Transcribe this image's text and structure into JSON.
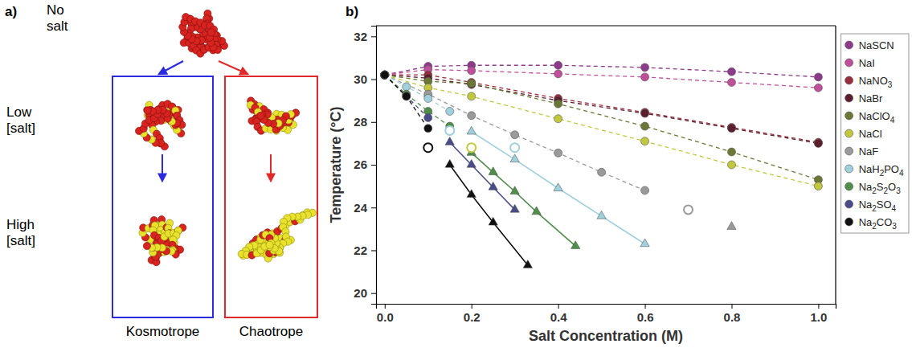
{
  "panel_a": {
    "label": "a)",
    "top": "No salt",
    "rows": [
      "Low [salt]",
      "High [salt]"
    ],
    "columns": [
      "Kosmotrope",
      "Chaotrope"
    ]
  },
  "chart_data": {
    "type": "scatter",
    "panel_label": "b)",
    "x_label": "Salt Concentration (M)",
    "y_label": "Temperature (°C)",
    "xlim": [
      -0.02,
      1.04
    ],
    "ylim": [
      19.5,
      32.5
    ],
    "xticks": [
      {
        "value": 0,
        "label": "0.0"
      },
      {
        "value": 0.2,
        "label": "0.2"
      },
      {
        "value": 0.4,
        "label": "0.4"
      },
      {
        "value": 0.6,
        "label": "0.6"
      },
      {
        "value": 0.8,
        "label": "0.8"
      },
      {
        "value": 1,
        "label": "1.0"
      }
    ],
    "yticks": [
      20,
      22,
      24,
      26,
      28,
      30,
      32
    ],
    "grid": false,
    "legend": "right",
    "series": [
      {
        "name": "NaSCN",
        "color": "#8e3a8a",
        "marker": "circle",
        "line_style": "dashed",
        "x": [
          0,
          0.1,
          0.2,
          0.4,
          0.6,
          0.8,
          1.0
        ],
        "values": [
          30.2,
          30.6,
          30.65,
          30.65,
          30.55,
          30.35,
          30.1
        ]
      },
      {
        "name": "NaI",
        "color": "#c04f9a",
        "marker": "circle",
        "line_style": "dashed",
        "x": [
          0,
          0.1,
          0.2,
          0.4,
          0.6,
          0.8,
          1.0
        ],
        "values": [
          30.2,
          30.45,
          30.4,
          30.25,
          30.1,
          29.85,
          29.6
        ]
      },
      {
        "name": "NaNO3",
        "color": "#9a2d3c",
        "marker": "circle",
        "line_style": "dashed",
        "x": [
          0,
          0.1,
          0.2,
          0.4,
          0.6,
          0.8,
          1.0
        ],
        "values": [
          30.2,
          30.2,
          29.85,
          29.1,
          28.45,
          27.75,
          27.05
        ]
      },
      {
        "name": "NaBr",
        "color": "#5c1e2c",
        "marker": "circle",
        "line_style": "dashed",
        "x": [
          0,
          0.1,
          0.2,
          0.4,
          0.6,
          0.8,
          1.0
        ],
        "values": [
          30.2,
          30.05,
          29.75,
          29.0,
          28.4,
          27.7,
          27.0
        ]
      },
      {
        "name": "NaClO4",
        "color": "#6b7835",
        "marker": "circle",
        "line_style": "dashed",
        "x": [
          0,
          0.1,
          0.2,
          0.4,
          0.6,
          0.8,
          1.0
        ],
        "values": [
          30.2,
          29.9,
          29.8,
          28.85,
          27.8,
          26.6,
          25.3
        ]
      },
      {
        "name": "NaCl",
        "color": "#c2c83e",
        "marker": "circle",
        "line_style": "dashed",
        "x": [
          0,
          0.1,
          0.2,
          0.4,
          0.6,
          0.8,
          1.0
        ],
        "values": [
          30.2,
          29.6,
          29.2,
          28.15,
          27.1,
          26.0,
          25.0
        ]
      },
      {
        "name": "NaF",
        "color": "#9a9a9a",
        "marker": "circle",
        "line_style": "dashed",
        "x": [
          0,
          0.1,
          0.2,
          0.3,
          0.4,
          0.5,
          0.6
        ],
        "values": [
          30.2,
          29.3,
          28.3,
          27.4,
          26.55,
          25.65,
          24.8
        ]
      },
      {
        "name": "NaH2PO4",
        "color": "#9fd0dc",
        "marker": "circle",
        "line_style": "dashed",
        "x": [
          0,
          0.05,
          0.1,
          0.15
        ],
        "values": [
          30.2,
          29.65,
          29.1,
          28.5
        ]
      },
      {
        "name": "Na2S2O3",
        "color": "#4f8f4a",
        "marker": "circle",
        "line_style": "dashed",
        "x": [
          0,
          0.05,
          0.1,
          0.15
        ],
        "values": [
          30.2,
          29.3,
          28.5,
          27.8
        ]
      },
      {
        "name": "Na2SO4",
        "color": "#4a4c8a",
        "marker": "circle",
        "line_style": "dashed",
        "x": [
          0,
          0.05,
          0.1
        ],
        "values": [
          30.2,
          29.2,
          28.2
        ]
      },
      {
        "name": "Na2CO3",
        "color": "#111111",
        "marker": "circle",
        "line_style": "dashed",
        "x": [
          0,
          0.05,
          0.1
        ],
        "values": [
          30.2,
          29.2,
          27.7
        ]
      },
      {
        "color": "#9fd0dc",
        "marker": "triangle",
        "line_style": "solid",
        "x": [
          0.2,
          0.3,
          0.4,
          0.5,
          0.6
        ],
        "values": [
          27.55,
          26.25,
          24.9,
          23.6,
          22.3
        ]
      },
      {
        "color": "#4f8f4a",
        "marker": "triangle",
        "line_style": "solid",
        "x": [
          0.2,
          0.25,
          0.3,
          0.35,
          0.44
        ],
        "values": [
          26.56,
          25.65,
          24.75,
          23.8,
          22.2
        ]
      },
      {
        "color": "#4a4c8a",
        "marker": "triangle",
        "line_style": "solid",
        "x": [
          0.15,
          0.2,
          0.25,
          0.3
        ],
        "values": [
          27.05,
          26.0,
          24.95,
          23.9
        ]
      },
      {
        "color": "#111111",
        "marker": "triangle",
        "line_style": "solid",
        "x": [
          0.15,
          0.2,
          0.25,
          0.33
        ],
        "values": [
          26.0,
          24.6,
          23.3,
          21.3
        ]
      },
      {
        "color": "#9a9a9a",
        "marker": "triangle",
        "line_style": "none",
        "x": [
          0.8
        ],
        "values": [
          23.1
        ]
      },
      {
        "color": "#111111",
        "marker": "open-circle",
        "line_style": "none",
        "x": [
          0.1
        ],
        "values": [
          26.8
        ]
      },
      {
        "color": "#9fd0dc",
        "marker": "open-circle",
        "line_style": "none",
        "x": [
          0.15
        ],
        "values": [
          27.6
        ]
      },
      {
        "color": "#c2c83e",
        "marker": "open-circle",
        "line_style": "none",
        "x": [
          0.2
        ],
        "values": [
          26.8
        ]
      },
      {
        "color": "#9fd0dc",
        "marker": "open-circle",
        "line_style": "none",
        "x": [
          0.3
        ],
        "values": [
          26.8
        ]
      },
      {
        "color": "#9a9a9a",
        "marker": "open-circle",
        "line_style": "none",
        "x": [
          0.7
        ],
        "values": [
          23.9
        ]
      }
    ]
  }
}
